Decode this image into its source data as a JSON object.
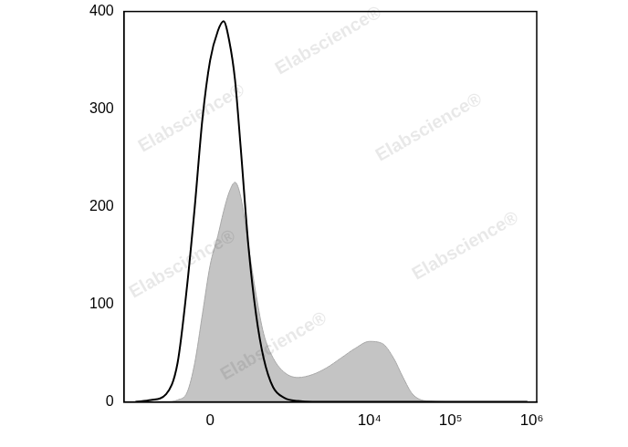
{
  "chart_data": {
    "type": "line",
    "annotations": [
      "Elabscience®"
    ],
    "x": [
      -892,
      -565,
      -349,
      -231,
      -152,
      -98,
      -48,
      0,
      48,
      85,
      124,
      167,
      214,
      286,
      371,
      473,
      633,
      892,
      1310,
      1975,
      2970,
      4470,
      6710,
      10000,
      14300,
      19800,
      26000,
      34000,
      51000,
      132000,
      883000
    ],
    "series": [
      {
        "type": "line",
        "color": "#000000",
        "values": [
          0,
          2,
          8,
          40,
          120,
          200,
          290,
          350,
          380,
          390,
          370,
          330,
          260,
          160,
          90,
          45,
          15,
          4,
          1,
          0,
          0,
          0,
          0,
          0,
          0,
          0,
          0,
          0,
          0,
          0,
          0
        ]
      },
      {
        "type": "area",
        "color": "#c4c4c4",
        "values": [
          0,
          0,
          0,
          2,
          10,
          40,
          90,
          140,
          170,
          195,
          215,
          225,
          210,
          160,
          110,
          70,
          45,
          30,
          25,
          28,
          35,
          45,
          55,
          62,
          60,
          45,
          25,
          8,
          1,
          0,
          0
        ]
      }
    ],
    "xlim": [
      -1250,
      1150000
    ],
    "xticks": [
      0,
      {
        "value": 10000,
        "label": "10⁴"
      },
      {
        "value": 100000,
        "label": "10⁵"
      },
      {
        "value": 1000000,
        "label": "10⁶"
      }
    ],
    "ylim": [
      0,
      400
    ],
    "yticks": [
      0,
      100,
      200,
      300,
      400
    ],
    "grid": false
  }
}
